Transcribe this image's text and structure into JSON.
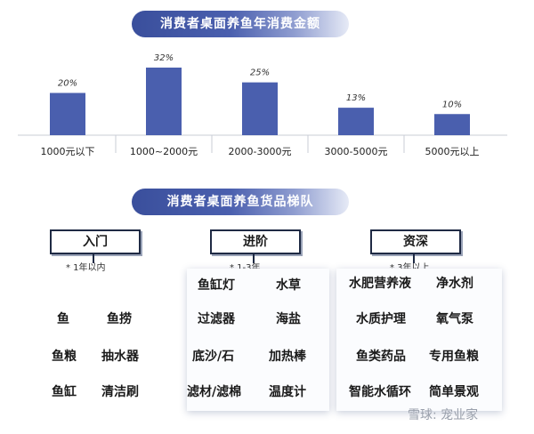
{
  "titles": {
    "chart": "消费者桌面养鱼年消费金额",
    "tiers": "消费者桌面养鱼货品梯队"
  },
  "chart_data": {
    "type": "bar",
    "title": "消费者桌面养鱼年消费金额",
    "categories": [
      "1000元以下",
      "1000~2000元",
      "2000-3000元",
      "3000-5000元",
      "5000元以上"
    ],
    "values": [
      20,
      32,
      25,
      13,
      10
    ],
    "data_labels": [
      "20%",
      "32%",
      "25%",
      "13%",
      "10%"
    ],
    "ylim": [
      0,
      32
    ],
    "grid": false,
    "bar_color": "#4a5fae"
  },
  "tiers": [
    {
      "label": "入门",
      "note": "* 1年以内",
      "items": [
        "鱼",
        "鱼捞",
        "鱼粮",
        "抽水器",
        "鱼缸",
        "清洁刷"
      ]
    },
    {
      "label": "进阶",
      "note": "* 1-3年",
      "items": [
        "鱼缸灯",
        "水草",
        "过滤器",
        "海盐",
        "底沙/石",
        "加热棒",
        "滤材/滤棉",
        "温度计"
      ]
    },
    {
      "label": "资深",
      "note": "* 3年以上",
      "items": [
        "水肥营养液",
        "净水剂",
        "水质护理",
        "氧气泵",
        "鱼类药品",
        "专用鱼粮",
        "智能水循环",
        "简单景观"
      ]
    }
  ],
  "watermark": "雪球: 宠业家",
  "colors": {
    "accent": "#3a4f9c",
    "border": "#1f2a44"
  }
}
